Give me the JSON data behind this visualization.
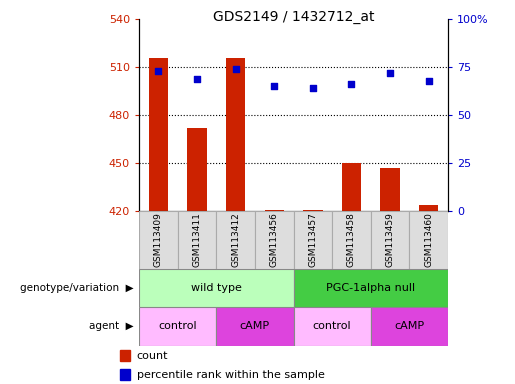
{
  "title": "GDS2149 / 1432712_at",
  "samples": [
    "GSM113409",
    "GSM113411",
    "GSM113412",
    "GSM113456",
    "GSM113457",
    "GSM113458",
    "GSM113459",
    "GSM113460"
  ],
  "counts": [
    516,
    472,
    516,
    421,
    421,
    450,
    447,
    424
  ],
  "percentile_ranks": [
    73,
    69,
    74,
    65,
    64,
    66,
    72,
    68
  ],
  "ylim_left": [
    420,
    540
  ],
  "ylim_right": [
    0,
    100
  ],
  "yticks_left": [
    420,
    450,
    480,
    510,
    540
  ],
  "yticks_right": [
    0,
    25,
    50,
    75,
    100
  ],
  "bar_color": "#cc2200",
  "dot_color": "#0000cc",
  "genotype_groups": [
    {
      "label": "wild type",
      "start": 0,
      "end": 4,
      "color": "#bbffbb"
    },
    {
      "label": "PGC-1alpha null",
      "start": 4,
      "end": 8,
      "color": "#44cc44"
    }
  ],
  "agent_groups": [
    {
      "label": "control",
      "start": 0,
      "end": 2,
      "color": "#ffbbff"
    },
    {
      "label": "cAMP",
      "start": 2,
      "end": 4,
      "color": "#dd44dd"
    },
    {
      "label": "control",
      "start": 4,
      "end": 6,
      "color": "#ffbbff"
    },
    {
      "label": "cAMP",
      "start": 6,
      "end": 8,
      "color": "#dd44dd"
    }
  ],
  "legend_items": [
    {
      "label": "count",
      "color": "#cc2200"
    },
    {
      "label": "percentile rank within the sample",
      "color": "#0000cc"
    }
  ],
  "tick_label_color_left": "#cc2200",
  "tick_label_color_right": "#0000cc"
}
